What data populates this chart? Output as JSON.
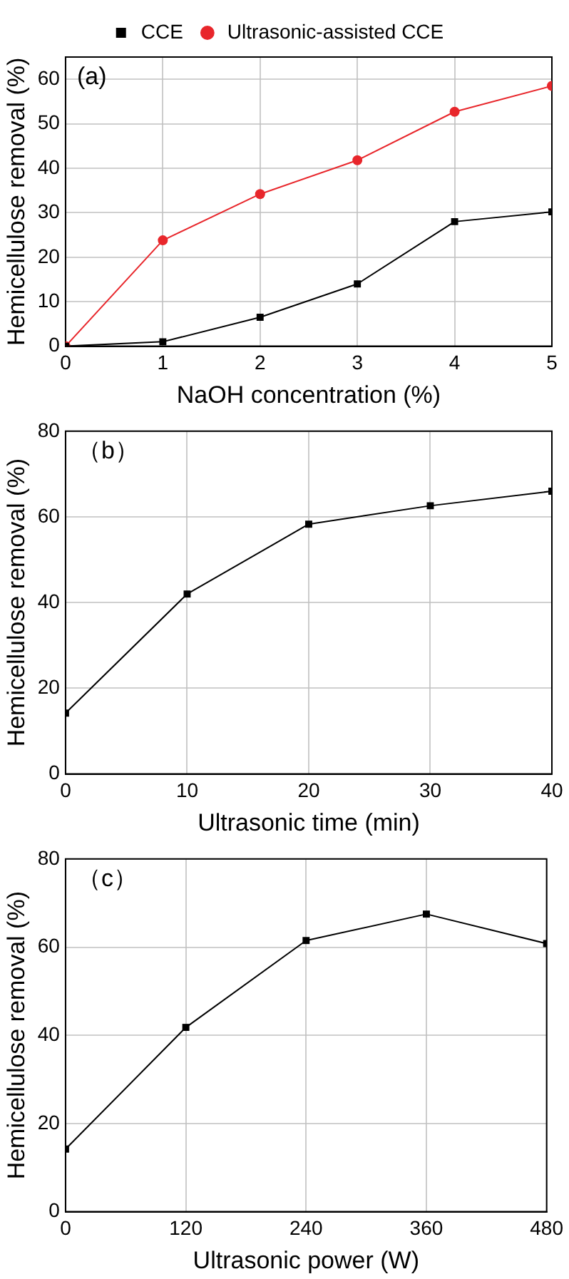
{
  "chart_data": [
    {
      "type": "line",
      "xlabel": "NaOH concentration (%)",
      "ylabel": "Hemicellulose removal (%)",
      "annotations": [
        "(a)"
      ],
      "x": [
        0,
        1,
        2,
        3,
        4,
        5
      ],
      "xlim": [
        0,
        5
      ],
      "xticks": [
        0,
        1,
        2,
        3,
        4,
        5
      ],
      "ylim": [
        0,
        65
      ],
      "yticks": [
        0,
        10,
        20,
        30,
        40,
        50,
        60
      ],
      "grid": true,
      "legend": "top",
      "line_style": "solid",
      "series": [
        {
          "name": "CCE",
          "color": "#000000",
          "marker": "square",
          "values": [
            0,
            1,
            6.5,
            14,
            28,
            30.2
          ]
        },
        {
          "name": "Ultrasonic-assisted CCE",
          "color": "#e8262b",
          "marker": "circle",
          "values": [
            0,
            23.8,
            34.2,
            41.8,
            52.7,
            58.5
          ]
        }
      ]
    },
    {
      "type": "line",
      "xlabel": "Ultrasonic time (min)",
      "ylabel": "Hemicellulose removal (%)",
      "annotations": [
        "（b）"
      ],
      "x": [
        0,
        10,
        20,
        30,
        40
      ],
      "xlim": [
        0,
        40
      ],
      "xticks": [
        0,
        10,
        20,
        30,
        40
      ],
      "ylim": [
        0,
        80
      ],
      "yticks": [
        0,
        20,
        40,
        60,
        80
      ],
      "grid": true,
      "marker": "square",
      "line_style": "solid",
      "series": [
        {
          "color": "#000000",
          "values": [
            14.2,
            42,
            58.3,
            62.6,
            66
          ]
        }
      ]
    },
    {
      "type": "line",
      "xlabel": "Ultrasonic power (W)",
      "ylabel": "Hemicellulose removal (%)",
      "annotations": [
        "（c）"
      ],
      "x": [
        0,
        120,
        240,
        360,
        480
      ],
      "xlim": [
        0,
        480
      ],
      "xticks": [
        0,
        120,
        240,
        360,
        480
      ],
      "ylim": [
        0,
        80
      ],
      "yticks": [
        0,
        20,
        40,
        60,
        80
      ],
      "grid": true,
      "marker": "square",
      "line_style": "solid",
      "series": [
        {
          "color": "#000000",
          "values": [
            14.2,
            41.8,
            61.5,
            67.5,
            60.8
          ]
        }
      ]
    }
  ]
}
